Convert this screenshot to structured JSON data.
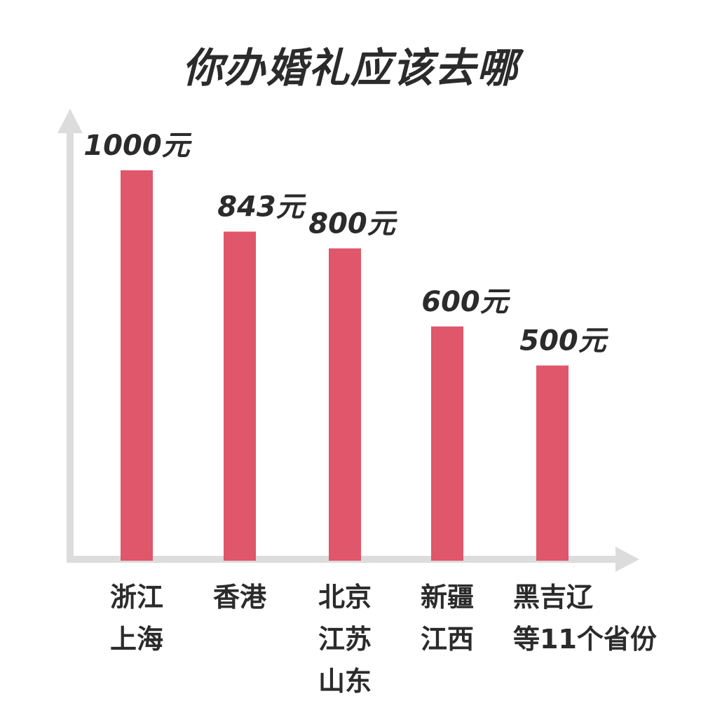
{
  "chart_data": {
    "type": "bar",
    "title": "你办婚礼应该去哪",
    "categories": [
      [
        "浙江",
        "上海"
      ],
      [
        "香港"
      ],
      [
        "北京",
        "江苏",
        "山东"
      ],
      [
        "新疆",
        "江西"
      ],
      [
        "黑吉辽",
        "等11个省份"
      ]
    ],
    "values": [
      1000,
      843,
      800,
      600,
      500
    ],
    "value_labels": [
      "1000元",
      "843元",
      "800元",
      "600元",
      "500元"
    ],
    "xlabel": "",
    "ylabel": "",
    "ylim": [
      0,
      1000
    ],
    "grid": false,
    "legend": "none"
  },
  "colors": {
    "bar": "#e0566a",
    "axis": "#dcdcdc",
    "text": "#2b2b2b"
  }
}
